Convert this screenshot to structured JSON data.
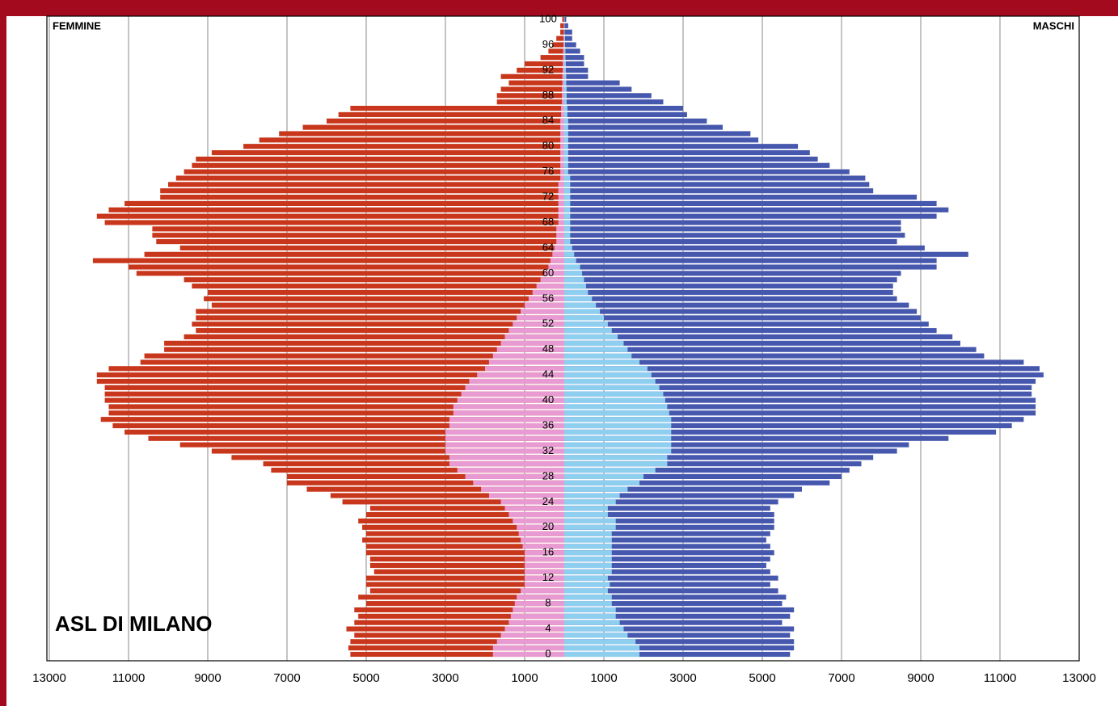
{
  "chart_data": {
    "type": "pyramid",
    "title": "ASL DI MILANO",
    "left_label": "FEMMINE",
    "right_label": "MASCHI",
    "categories": [
      "0",
      null,
      null,
      null,
      "4",
      null,
      null,
      null,
      "8",
      null,
      null,
      null,
      "12",
      null,
      null,
      null,
      "16",
      null,
      null,
      null,
      "20",
      null,
      null,
      null,
      "24",
      null,
      null,
      null,
      "28",
      null,
      null,
      null,
      "32",
      null,
      null,
      null,
      "36",
      null,
      null,
      null,
      "40",
      null,
      null,
      null,
      "44",
      null,
      null,
      null,
      "48",
      null,
      null,
      null,
      "52",
      null,
      null,
      null,
      "56",
      null,
      null,
      null,
      "60",
      null,
      null,
      null,
      "64",
      null,
      null,
      null,
      "68",
      null,
      null,
      null,
      "72",
      null,
      null,
      null,
      "76",
      null,
      null,
      null,
      "80",
      null,
      null,
      null,
      "84",
      null,
      null,
      null,
      "88",
      null,
      null,
      null,
      "92",
      null,
      null,
      null,
      "96",
      null,
      null,
      null,
      "100"
    ],
    "series": [
      {
        "side": "left",
        "color": "#c8361b",
        "values": [
          5400,
          5450,
          5400,
          5300,
          5500,
          5300,
          5200,
          5300,
          5000,
          5200,
          4900,
          5000,
          5000,
          4800,
          4900,
          4900,
          5000,
          5000,
          5100,
          5000,
          5100,
          5200,
          5000,
          4900,
          5600,
          5900,
          6500,
          7000,
          7000,
          7400,
          7600,
          8400,
          8900,
          9700,
          10500,
          11100,
          11400,
          11700,
          11500,
          11500,
          11600,
          11600,
          11600,
          11800,
          11800,
          11500,
          10700,
          10600,
          10100,
          10100,
          9600,
          9300,
          9400,
          9300,
          9300,
          8900,
          9100,
          9000,
          9400,
          9600,
          10800,
          11000,
          11900,
          10600,
          9700,
          10300,
          10400,
          10400,
          11600,
          11800,
          11500,
          11100,
          10200,
          10200,
          10000,
          9800,
          9600,
          9400,
          9300,
          8900,
          8100,
          7700,
          7200,
          6600,
          6000,
          5700,
          5400,
          1700,
          1700,
          1600,
          1400,
          1600,
          1200,
          1000,
          600,
          400,
          300,
          200,
          100,
          100,
          50
        ]
      },
      {
        "side": "left",
        "color": "#e89ad2",
        "values": [
          1800,
          1800,
          1700,
          1600,
          1500,
          1400,
          1350,
          1300,
          1250,
          1200,
          1100,
          1000,
          1000,
          1000,
          1000,
          1000,
          1000,
          1050,
          1100,
          1150,
          1200,
          1300,
          1400,
          1500,
          1600,
          1900,
          2100,
          2300,
          2500,
          2700,
          2900,
          2900,
          3000,
          3000,
          3000,
          3000,
          2900,
          2900,
          2800,
          2800,
          2700,
          2600,
          2500,
          2400,
          2200,
          2000,
          1900,
          1800,
          1700,
          1600,
          1500,
          1400,
          1300,
          1200,
          1100,
          1000,
          900,
          800,
          700,
          600,
          500,
          400,
          350,
          300,
          250,
          200,
          200,
          200,
          150,
          150,
          150,
          150,
          150,
          150,
          150,
          100,
          100,
          100,
          100,
          100,
          100,
          100,
          100,
          100,
          100,
          80,
          80,
          60,
          60,
          60,
          50,
          50,
          40,
          40,
          30,
          30,
          20,
          20,
          10,
          10,
          10
        ]
      },
      {
        "side": "right",
        "color": "#4657ae",
        "values": [
          5700,
          5800,
          5800,
          5700,
          5800,
          5500,
          5700,
          5800,
          5500,
          5600,
          5400,
          5200,
          5400,
          5200,
          5100,
          5200,
          5300,
          5200,
          5100,
          5200,
          5300,
          5300,
          5300,
          5200,
          5400,
          5800,
          6000,
          6700,
          7000,
          7200,
          7500,
          7800,
          8400,
          8700,
          9700,
          10900,
          11300,
          11600,
          11900,
          11900,
          11900,
          11800,
          11800,
          11900,
          12100,
          12000,
          11600,
          10600,
          10400,
          10000,
          9800,
          9400,
          9200,
          9000,
          8900,
          8700,
          8400,
          8300,
          8300,
          8400,
          8500,
          9400,
          9400,
          10200,
          9100,
          8400,
          8600,
          8500,
          8500,
          9400,
          9700,
          9400,
          8900,
          7800,
          7700,
          7600,
          7200,
          6700,
          6400,
          6200,
          5900,
          4900,
          4700,
          4000,
          3600,
          3100,
          3000,
          2500,
          2200,
          1700,
          1400,
          600,
          600,
          500,
          500,
          400,
          300,
          200,
          200,
          100,
          50
        ]
      },
      {
        "side": "right",
        "color": "#8ecff0",
        "values": [
          1900,
          1900,
          1800,
          1600,
          1500,
          1400,
          1300,
          1300,
          1200,
          1200,
          1100,
          1150,
          1100,
          1200,
          1200,
          1200,
          1200,
          1200,
          1200,
          1200,
          1300,
          1300,
          1100,
          1100,
          1300,
          1400,
          1600,
          1900,
          2000,
          2300,
          2600,
          2600,
          2700,
          2700,
          2700,
          2700,
          2700,
          2700,
          2650,
          2600,
          2550,
          2500,
          2400,
          2300,
          2200,
          2100,
          1900,
          1700,
          1600,
          1500,
          1350,
          1200,
          1100,
          1000,
          900,
          800,
          700,
          600,
          550,
          500,
          450,
          400,
          300,
          250,
          200,
          150,
          150,
          150,
          150,
          150,
          150,
          150,
          150,
          150,
          150,
          150,
          100,
          100,
          100,
          100,
          100,
          100,
          100,
          100,
          100,
          80,
          80,
          60,
          60,
          60,
          50,
          50,
          40,
          40,
          30,
          30,
          20,
          20,
          10,
          10,
          10
        ]
      }
    ],
    "xlim": [
      0,
      13000
    ],
    "xticks": [
      1000,
      3000,
      5000,
      7000,
      9000,
      11000,
      13000
    ],
    "grid": true
  }
}
